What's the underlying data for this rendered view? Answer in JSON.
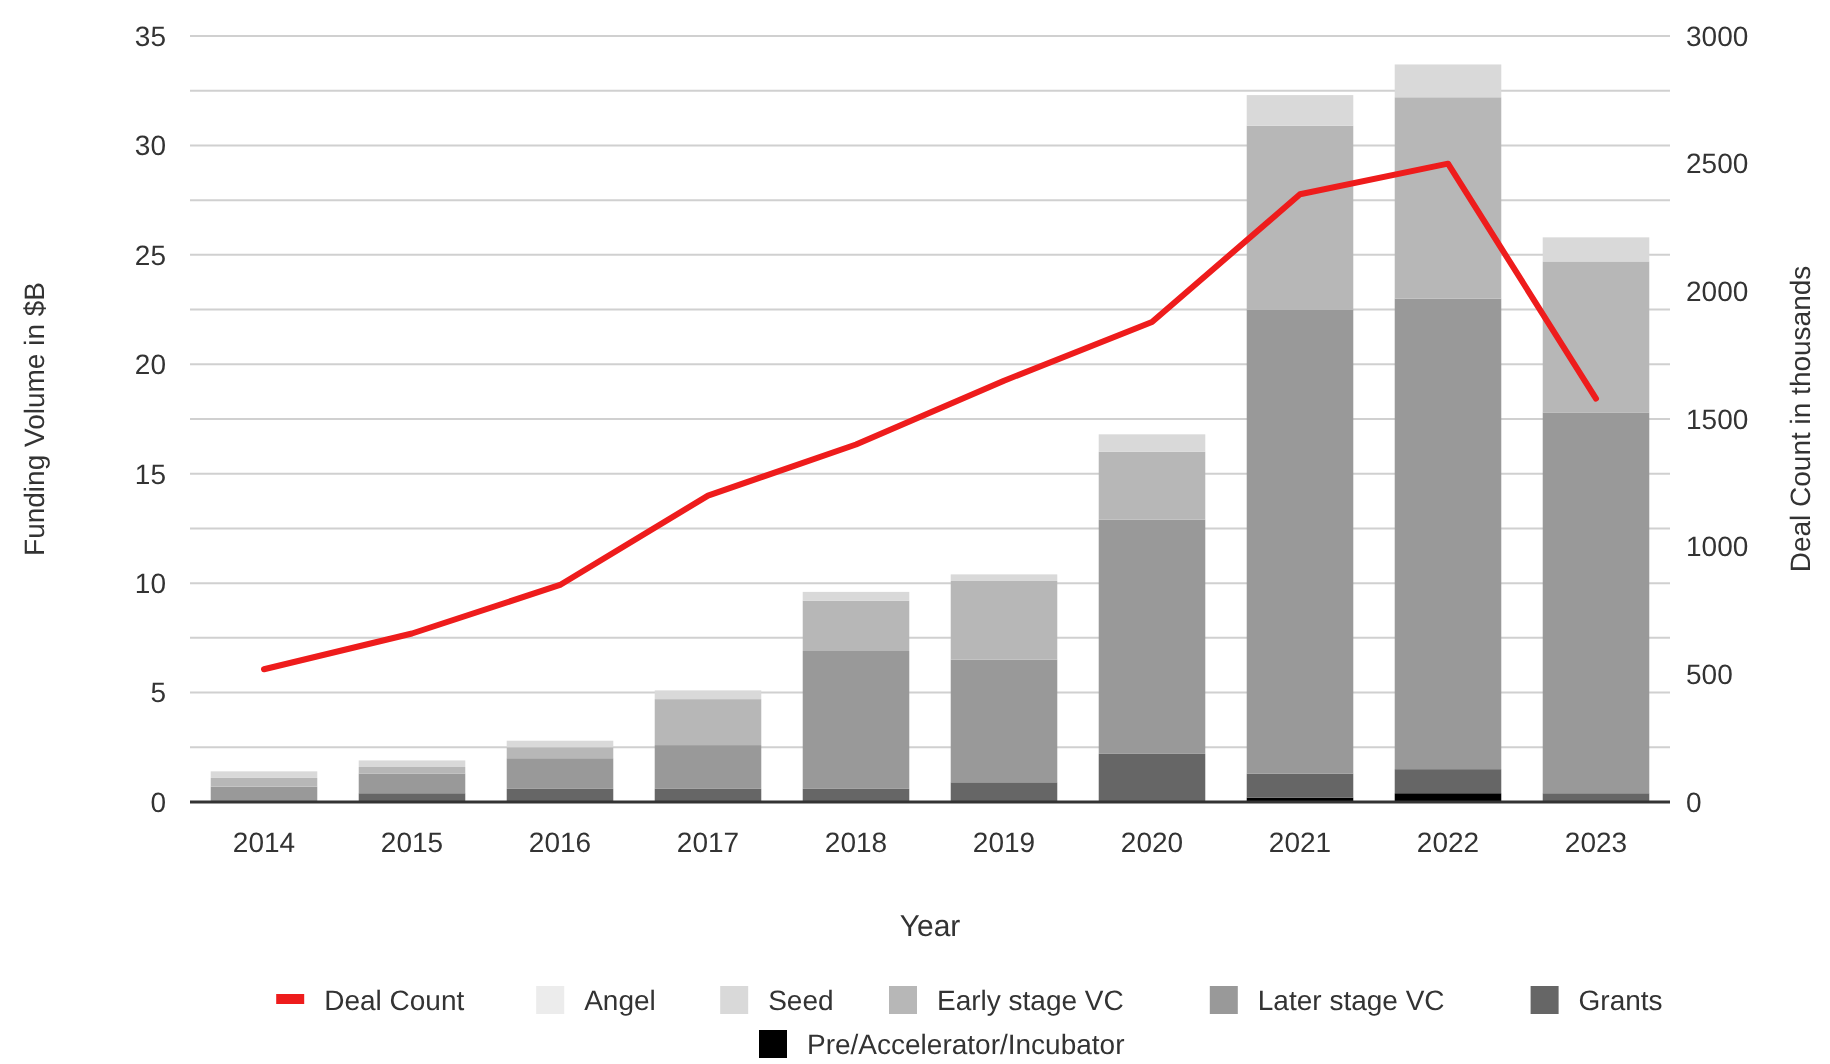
{
  "chart_data": {
    "type": "bar",
    "stacked": true,
    "xlabel": "Year",
    "ylabel": "Funding Volume in $B",
    "y2label": "Deal Count in thousands",
    "categories": [
      "2014",
      "2015",
      "2016",
      "2017",
      "2018",
      "2019",
      "2020",
      "2021",
      "2022",
      "2023"
    ],
    "series": [
      {
        "name": "Pre/Accelerator/Incubator",
        "color": "#000000",
        "values": [
          null,
          null,
          null,
          null,
          null,
          null,
          null,
          0.2,
          0.4,
          null
        ]
      },
      {
        "name": "Grants",
        "color": "#666666",
        "values": [
          null,
          0.4,
          0.6,
          0.6,
          0.6,
          0.9,
          2.2,
          1.1,
          1.1,
          0.4
        ]
      },
      {
        "name": "Later stage VC",
        "color": "#999999",
        "values": [
          0.7,
          0.9,
          1.4,
          2.0,
          6.3,
          5.6,
          10.7,
          21.2,
          21.5,
          17.4
        ]
      },
      {
        "name": "Early stage VC",
        "color": "#b7b7b7",
        "values": [
          0.4,
          0.3,
          0.5,
          2.1,
          2.3,
          3.6,
          3.1,
          8.4,
          9.2,
          6.9
        ]
      },
      {
        "name": "Seed",
        "color": "#d9d9d9",
        "values": [
          0.3,
          0.3,
          0.3,
          0.4,
          0.4,
          0.3,
          0.8,
          1.4,
          1.5,
          1.1
        ]
      },
      {
        "name": "Angel",
        "color": "#ececec",
        "values": [
          null,
          null,
          null,
          null,
          null,
          null,
          null,
          null,
          null,
          null
        ]
      },
      {
        "name": "Deal Count",
        "type": "line",
        "axis": "y2",
        "color": "#ee1c1c",
        "values": [
          520,
          660,
          850,
          1200,
          1400,
          1650,
          1880,
          2380,
          2500,
          1580
        ]
      }
    ],
    "ylim": [
      0,
      35
    ],
    "yticks": [
      0,
      {
        "value": 2.5,
        "label": null
      },
      5,
      {
        "value": 7.5,
        "label": null
      },
      10,
      {
        "value": 12.5,
        "label": null
      },
      15,
      {
        "value": 17.5,
        "label": null
      },
      20,
      {
        "value": 22.5,
        "label": null
      },
      25,
      {
        "value": 27.5,
        "label": null
      },
      30,
      {
        "value": 32.5,
        "label": null
      },
      35
    ],
    "y2lim": [
      0,
      3000
    ],
    "y2ticks": [
      0,
      500,
      1000,
      1500,
      2000,
      2500,
      3000
    ],
    "grid": "y",
    "legend": "bottom",
    "line_style": "solid",
    "marker": "none"
  }
}
